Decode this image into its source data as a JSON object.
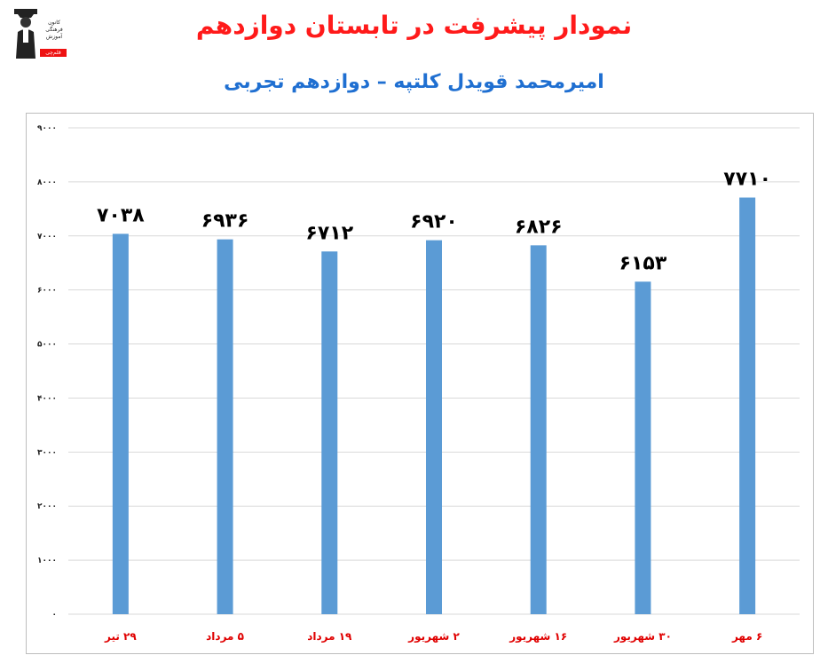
{
  "title": "نمودار پیشرفت در تابستان دوازدهم",
  "subtitle": "امیرمحمد قویدل کلتپه – دوازدهم تجربی",
  "logo": {
    "text": "کانون فرهنگی آموزش",
    "tag": "قلم‌چی"
  },
  "colors": {
    "title": "#ff1a1a",
    "subtitle": "#1f6fd1",
    "bar": "#5b9bd5",
    "category_label": "#e00000",
    "grid": "#d9d9d9"
  },
  "chart_data": {
    "type": "bar",
    "categories": [
      "۲۹ تیر",
      "۵ مرداد",
      "۱۹ مرداد",
      "۲ شهریور",
      "۱۶ شهریور",
      "۳۰ شهریور",
      "۶ مهر"
    ],
    "values": [
      7038,
      6936,
      6712,
      6920,
      6826,
      6153,
      7710
    ],
    "value_labels": [
      "۷۰۳۸",
      "۶۹۳۶",
      "۶۷۱۲",
      "۶۹۲۰",
      "۶۸۲۶",
      "۶۱۵۳",
      "۷۷۱۰"
    ],
    "ylim": [
      0,
      9000
    ],
    "yticks": [
      0,
      1000,
      2000,
      3000,
      4000,
      5000,
      6000,
      7000,
      8000,
      9000
    ],
    "ytick_labels": [
      "۰",
      "۱۰۰۰",
      "۲۰۰۰",
      "۳۰۰۰",
      "۴۰۰۰",
      "۵۰۰۰",
      "۶۰۰۰",
      "۷۰۰۰",
      "۸۰۰۰",
      "۹۰۰۰"
    ],
    "grid": true,
    "legend": "none"
  }
}
